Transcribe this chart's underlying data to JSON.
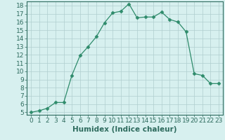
{
  "x": [
    0,
    1,
    2,
    3,
    4,
    5,
    6,
    7,
    8,
    9,
    10,
    11,
    12,
    13,
    14,
    15,
    16,
    17,
    18,
    19,
    20,
    21,
    22,
    23
  ],
  "y": [
    5.0,
    5.2,
    5.5,
    6.2,
    6.2,
    9.5,
    11.9,
    13.0,
    14.2,
    15.9,
    17.1,
    17.3,
    18.2,
    16.5,
    16.6,
    16.6,
    17.2,
    16.3,
    16.0,
    14.8,
    9.7,
    9.5,
    8.5,
    8.5
  ],
  "line_color": "#2e8b6b",
  "marker": "D",
  "marker_size": 2.5,
  "bg_color": "#d7f0ef",
  "grid_color": "#b0cece",
  "xlabel": "Humidex (Indice chaleur)",
  "xlim": [
    -0.5,
    23.5
  ],
  "ylim": [
    4.7,
    18.5
  ],
  "xtick_labels": [
    "0",
    "1",
    "2",
    "3",
    "4",
    "5",
    "6",
    "7",
    "8",
    "9",
    "10",
    "11",
    "12",
    "13",
    "14",
    "15",
    "16",
    "17",
    "18",
    "19",
    "20",
    "21",
    "22",
    "23"
  ],
  "ytick_values": [
    5,
    6,
    7,
    8,
    9,
    10,
    11,
    12,
    13,
    14,
    15,
    16,
    17,
    18
  ],
  "axis_color": "#2e6b5e",
  "tick_color": "#2e6b5e",
  "label_fontsize": 6.5,
  "xlabel_fontsize": 7.5
}
